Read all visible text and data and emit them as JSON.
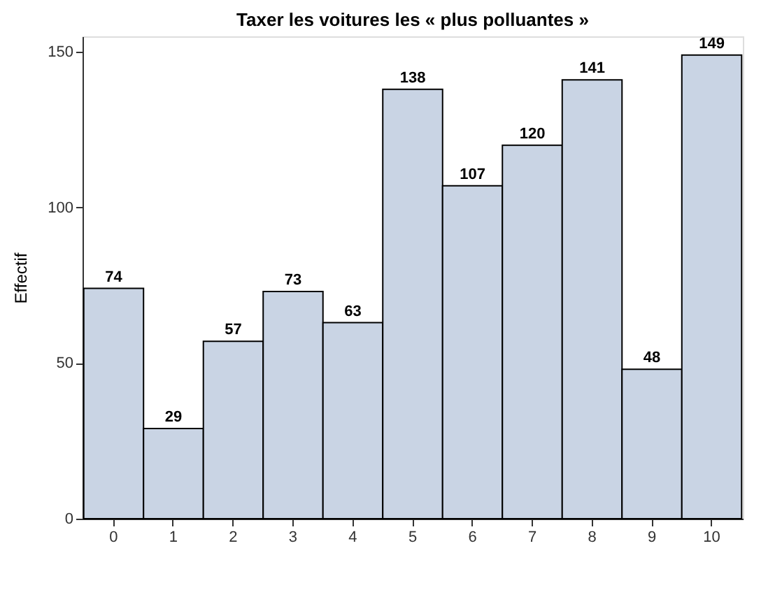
{
  "chart_data": {
    "type": "bar",
    "title": "Taxer les voitures les « plus polluantes »",
    "ylabel": "Effectif",
    "categories": [
      "0",
      "1",
      "2",
      "3",
      "4",
      "5",
      "6",
      "7",
      "8",
      "9",
      "10"
    ],
    "values": [
      74,
      29,
      57,
      73,
      63,
      138,
      107,
      120,
      141,
      48,
      149
    ],
    "color": "#c9d4e4",
    "ylim": [
      0,
      155
    ],
    "yticks": [
      0,
      50,
      100,
      150
    ],
    "grid": false,
    "data_labels": true
  }
}
